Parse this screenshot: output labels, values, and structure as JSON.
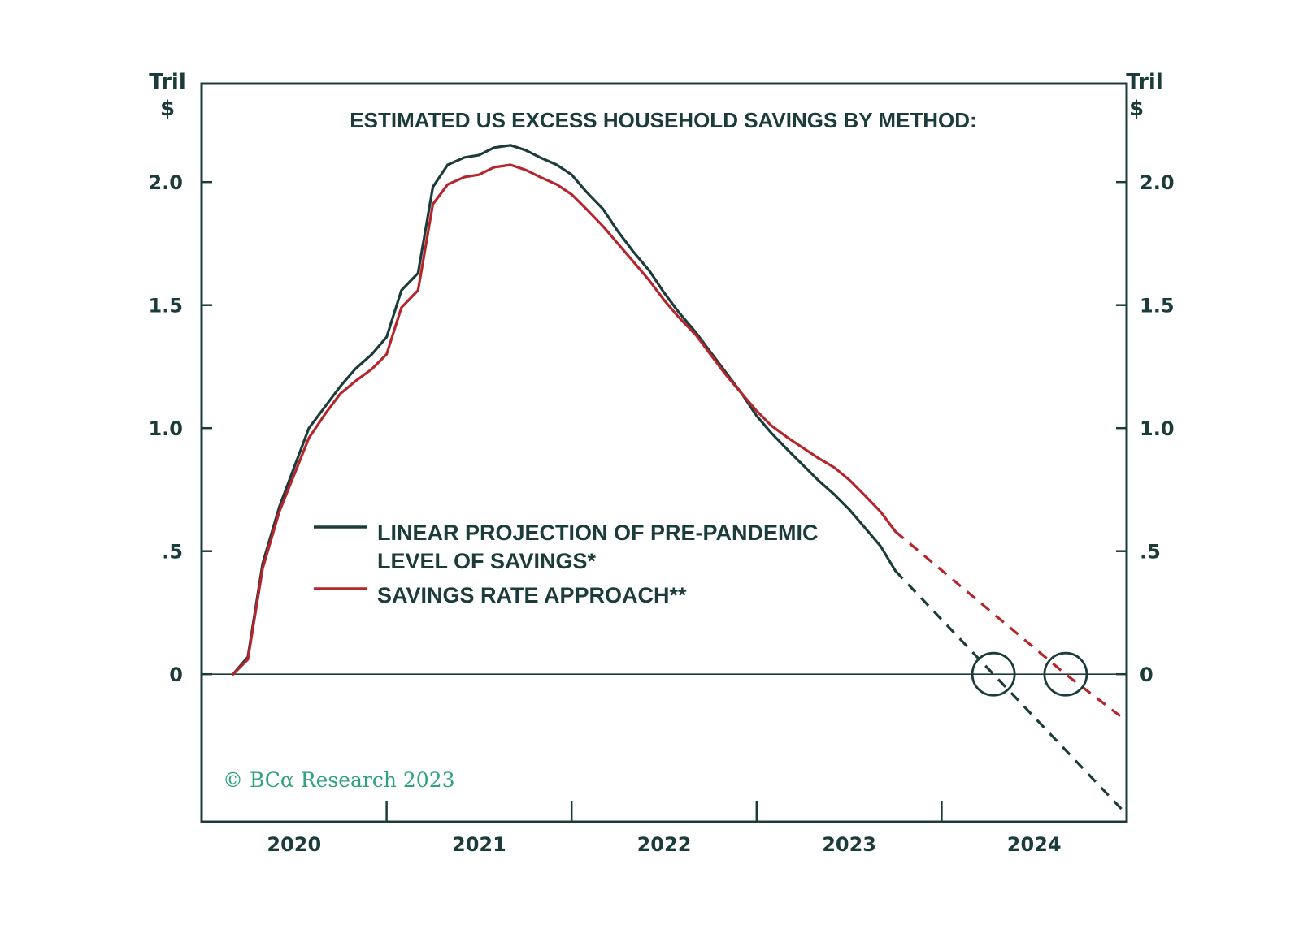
{
  "chart_data": {
    "type": "line",
    "title": "ESTIMATED US EXCESS HOUSEHOLD SAVINGS BY METHOD:",
    "ylabel_left": [
      "Tril",
      "$"
    ],
    "ylabel_right": [
      "Tril",
      "$"
    ],
    "ylim": [
      -0.6,
      2.4
    ],
    "xlim": [
      2019.5,
      2024.5
    ],
    "y_ticks": [
      {
        "value": 2.0,
        "label": "2.0"
      },
      {
        "value": 1.5,
        "label": "1.5"
      },
      {
        "value": 1.0,
        "label": "1.0"
      },
      {
        "value": 0.5,
        "label": ".5"
      },
      {
        "value": 0.0,
        "label": "0"
      }
    ],
    "x_tick_marks": [
      2020.5,
      2021.5,
      2022.5,
      2023.5
    ],
    "x_labels": [
      {
        "value": 2020,
        "label": "2020"
      },
      {
        "value": 2021,
        "label": "2021"
      },
      {
        "value": 2022,
        "label": "2022"
      },
      {
        "value": 2023,
        "label": "2023"
      },
      {
        "value": 2024,
        "label": "2024"
      }
    ],
    "legend": {
      "position": "center-left",
      "entries": [
        {
          "series": "linear",
          "lines": [
            "LINEAR PROJECTION OF PRE-PANDEMIC",
            "LEVEL OF SAVINGS*"
          ]
        },
        {
          "series": "savings_rate",
          "lines": [
            "SAVINGS RATE APPROACH**"
          ]
        }
      ]
    },
    "series": [
      {
        "id": "linear",
        "name": "LINEAR PROJECTION OF PRE-PANDEMIC LEVEL OF SAVINGS*",
        "color": "#1c3b3b",
        "actual": [
          [
            2019.67,
            0.0
          ],
          [
            2019.75,
            0.07
          ],
          [
            2019.83,
            0.45
          ],
          [
            2019.92,
            0.68
          ],
          [
            2020.0,
            0.84
          ],
          [
            2020.08,
            1.0
          ],
          [
            2020.17,
            1.09
          ],
          [
            2020.25,
            1.17
          ],
          [
            2020.33,
            1.24
          ],
          [
            2020.42,
            1.3
          ],
          [
            2020.5,
            1.37
          ],
          [
            2020.58,
            1.56
          ],
          [
            2020.67,
            1.63
          ],
          [
            2020.75,
            1.98
          ],
          [
            2020.83,
            2.07
          ],
          [
            2020.92,
            2.1
          ],
          [
            2021.0,
            2.11
          ],
          [
            2021.08,
            2.14
          ],
          [
            2021.17,
            2.15
          ],
          [
            2021.25,
            2.13
          ],
          [
            2021.33,
            2.1
          ],
          [
            2021.42,
            2.07
          ],
          [
            2021.5,
            2.03
          ],
          [
            2021.58,
            1.96
          ],
          [
            2021.67,
            1.89
          ],
          [
            2021.75,
            1.8
          ],
          [
            2021.83,
            1.72
          ],
          [
            2021.92,
            1.64
          ],
          [
            2022.0,
            1.55
          ],
          [
            2022.08,
            1.47
          ],
          [
            2022.17,
            1.39
          ],
          [
            2022.25,
            1.31
          ],
          [
            2022.33,
            1.23
          ],
          [
            2022.42,
            1.14
          ],
          [
            2022.5,
            1.05
          ],
          [
            2022.58,
            0.98
          ],
          [
            2022.67,
            0.91
          ],
          [
            2022.75,
            0.85
          ],
          [
            2022.83,
            0.79
          ],
          [
            2022.92,
            0.73
          ],
          [
            2023.0,
            0.67
          ],
          [
            2023.08,
            0.6
          ],
          [
            2023.17,
            0.52
          ],
          [
            2023.25,
            0.42
          ]
        ],
        "projected": [
          [
            2023.25,
            0.42
          ],
          [
            2023.78,
            0.0
          ],
          [
            2024.5,
            -0.57
          ]
        ]
      },
      {
        "id": "savings_rate",
        "name": "SAVINGS RATE APPROACH**",
        "color": "#b5252c",
        "actual": [
          [
            2019.67,
            0.0
          ],
          [
            2019.75,
            0.06
          ],
          [
            2019.83,
            0.43
          ],
          [
            2019.92,
            0.66
          ],
          [
            2020.0,
            0.81
          ],
          [
            2020.08,
            0.96
          ],
          [
            2020.17,
            1.06
          ],
          [
            2020.25,
            1.14
          ],
          [
            2020.33,
            1.19
          ],
          [
            2020.42,
            1.24
          ],
          [
            2020.5,
            1.3
          ],
          [
            2020.58,
            1.49
          ],
          [
            2020.67,
            1.56
          ],
          [
            2020.75,
            1.91
          ],
          [
            2020.83,
            1.99
          ],
          [
            2020.92,
            2.02
          ],
          [
            2021.0,
            2.03
          ],
          [
            2021.08,
            2.06
          ],
          [
            2021.17,
            2.07
          ],
          [
            2021.25,
            2.05
          ],
          [
            2021.33,
            2.02
          ],
          [
            2021.42,
            1.99
          ],
          [
            2021.5,
            1.95
          ],
          [
            2021.58,
            1.89
          ],
          [
            2021.67,
            1.82
          ],
          [
            2021.75,
            1.75
          ],
          [
            2021.83,
            1.68
          ],
          [
            2021.92,
            1.6
          ],
          [
            2022.0,
            1.52
          ],
          [
            2022.08,
            1.45
          ],
          [
            2022.17,
            1.38
          ],
          [
            2022.25,
            1.3
          ],
          [
            2022.33,
            1.22
          ],
          [
            2022.42,
            1.14
          ],
          [
            2022.5,
            1.07
          ],
          [
            2022.58,
            1.01
          ],
          [
            2022.67,
            0.96
          ],
          [
            2022.75,
            0.92
          ],
          [
            2022.83,
            0.88
          ],
          [
            2022.92,
            0.84
          ],
          [
            2023.0,
            0.79
          ],
          [
            2023.08,
            0.73
          ],
          [
            2023.17,
            0.66
          ],
          [
            2023.25,
            0.58
          ]
        ],
        "projected": [
          [
            2023.25,
            0.58
          ],
          [
            2024.17,
            0.0
          ],
          [
            2024.5,
            -0.19
          ]
        ]
      }
    ],
    "highlight_circles": [
      {
        "x": 2023.78,
        "y": 0.0
      },
      {
        "x": 2024.17,
        "y": 0.0
      }
    ],
    "credit": "© BCα Research 2023",
    "credit_color": "#2fa37a"
  }
}
